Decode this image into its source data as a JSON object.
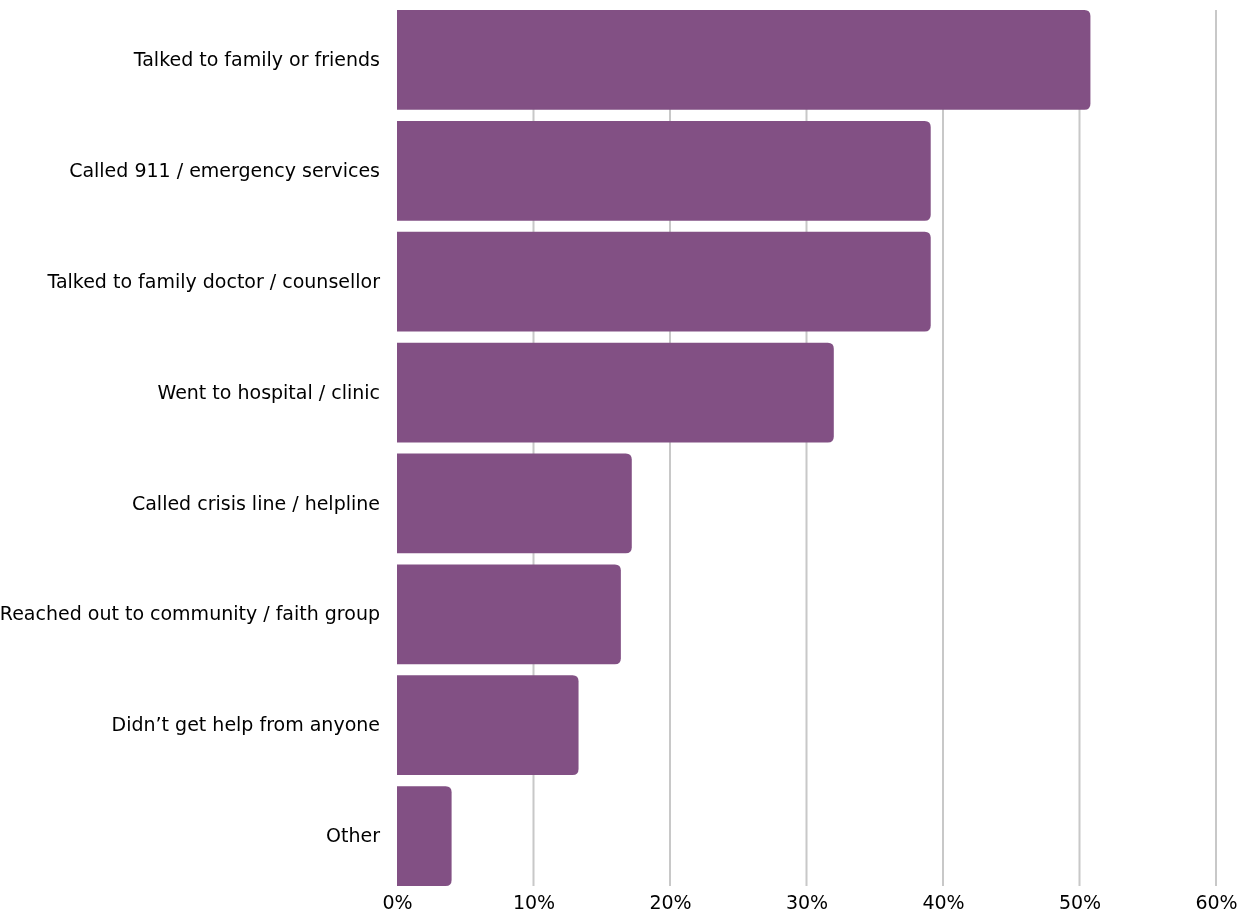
{
  "chart_data": {
    "type": "bar",
    "orientation": "horizontal",
    "categories": [
      "Talked to family or friends",
      "Called 911 / emergency services",
      "Talked to family doctor / counsellor",
      "Went to hospital / clinic",
      "Called crisis line / helpline",
      "Reached out to community / faith group",
      "Didn’t get help from anyone",
      "Other"
    ],
    "values": [
      50.8,
      39.1,
      39.1,
      32.0,
      17.2,
      16.4,
      13.3,
      4.0
    ],
    "color": "#825084",
    "xlim": [
      0,
      60
    ],
    "xticks": [
      {
        "value": 0,
        "label": "0%"
      },
      {
        "value": 10,
        "label": "10%"
      },
      {
        "value": 20,
        "label": "20%"
      },
      {
        "value": 30,
        "label": "30%"
      },
      {
        "value": 40,
        "label": "40%"
      },
      {
        "value": 50,
        "label": "50%"
      },
      {
        "value": 60,
        "label": "60%"
      }
    ],
    "grid": "x"
  }
}
